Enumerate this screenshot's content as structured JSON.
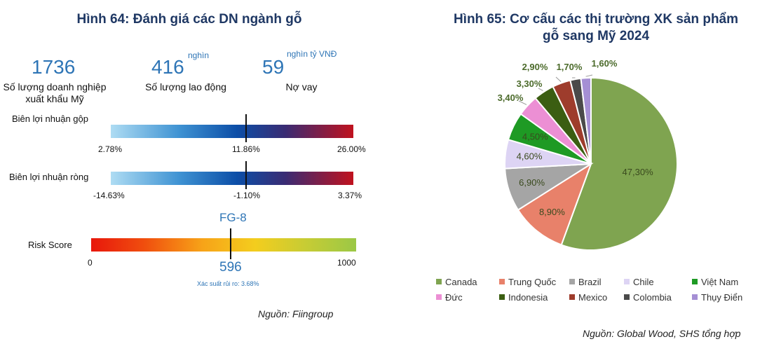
{
  "left": {
    "title": "Hình 64: Đánh giá các DN ngành gỗ",
    "stats": [
      {
        "value": "1736",
        "unit": "",
        "label_line1": "Số lượng doanh nghiệp",
        "label_line2": "xuất khẩu Mỹ"
      },
      {
        "value": "416",
        "unit": "nghìn",
        "label_line1": "Số lượng lao động",
        "label_line2": ""
      },
      {
        "value": "59",
        "unit": "nghìn tỷ VNĐ",
        "label_line1": "Nợ vay",
        "label_line2": ""
      }
    ],
    "gross_margin": {
      "label": "Biên lợi nhuận gộp",
      "min": "2.78%",
      "mid": "11.86%",
      "max": "26.00%",
      "marker_fraction": 0.56
    },
    "net_margin": {
      "label": "Biên lợi nhuận ròng",
      "min": "-14.63%",
      "mid": "-1.10%",
      "max": "3.37%",
      "marker_fraction": 0.56
    },
    "risk": {
      "label": "Risk Score",
      "grade": "FG-8",
      "min": "0",
      "max": "1000",
      "score": "596",
      "marker_fraction": 0.526,
      "probability": "Xác suất rủi ro: 3.68%"
    },
    "source": "Nguồn: Fiingroup"
  },
  "right": {
    "title_line1": "Hình 65: Cơ cấu các thị trường XK sản phẩm",
    "title_line2": "gỗ sang Mỹ 2024",
    "source": "Nguồn: Global Wood, SHS tổng hợp"
  },
  "chart_data": {
    "type": "pie",
    "title": "Hình 65: Cơ cấu các thị trường XK sản phẩm gỗ sang Mỹ 2024",
    "legend_position": "bottom",
    "slices": [
      {
        "name": "Canada",
        "value": 47.3,
        "label": "47,30%",
        "color": "#7fa450"
      },
      {
        "name": "Trung Quốc",
        "value": 8.9,
        "label": "8,90%",
        "color": "#e8816a"
      },
      {
        "name": "Brazil",
        "value": 6.9,
        "label": "6,90%",
        "color": "#a5a5a5"
      },
      {
        "name": "Chile",
        "value": 4.6,
        "label": "4,60%",
        "color": "#ddd4f4"
      },
      {
        "name": "Việt Nam",
        "value": 4.5,
        "label": "4,50%",
        "color": "#1e9a24"
      },
      {
        "name": "Đức",
        "value": 3.4,
        "label": "3,40%",
        "color": "#ec8fd4"
      },
      {
        "name": "Indonesia",
        "value": 3.3,
        "label": "3,30%",
        "color": "#3b5e12"
      },
      {
        "name": "Mexico",
        "value": 2.9,
        "label": "2,90%",
        "color": "#9e3c2c"
      },
      {
        "name": "Colombia",
        "value": 1.7,
        "label": "1,70%",
        "color": "#4a4a4a"
      },
      {
        "name": "Thụy Điển",
        "value": 1.6,
        "label": "1,60%",
        "color": "#a58fd4"
      }
    ]
  }
}
